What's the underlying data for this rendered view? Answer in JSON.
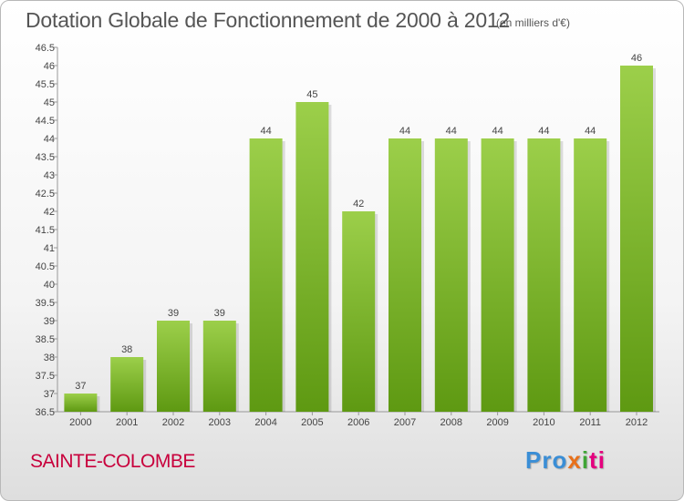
{
  "header": {
    "title": "Dotation Globale de Fonctionnement de 2000 à 2012",
    "subtitle": "(en milliers d'€)"
  },
  "footer": {
    "place": "SAINTE-COLOMBE",
    "logo": [
      "Pro",
      "x",
      "i",
      "ti"
    ]
  },
  "colors": {
    "bar_top": "#9ccf4a",
    "bar_bottom": "#5e9912",
    "title": "#555555",
    "place": "#c8003c"
  },
  "chart_data": {
    "type": "bar",
    "title": "Dotation Globale de Fonctionnement de 2000 à 2012",
    "subtitle": "(en milliers d'€)",
    "categories": [
      "2000",
      "2001",
      "2002",
      "2003",
      "2004",
      "2005",
      "2006",
      "2007",
      "2008",
      "2009",
      "2010",
      "2011",
      "2012"
    ],
    "values": [
      37,
      38,
      39,
      39,
      44,
      45,
      42,
      44,
      44,
      44,
      44,
      44,
      46
    ],
    "data_labels": [
      "37",
      "38",
      "39",
      "39",
      "44",
      "45",
      "42",
      "44",
      "44",
      "44",
      "44",
      "44",
      "46"
    ],
    "ylim": [
      36.5,
      46.5
    ],
    "yticks": [
      "36.5",
      "37",
      "37.5",
      "38",
      "38.5",
      "39",
      "39.5",
      "40",
      "40.5",
      "41",
      "41.5",
      "42",
      "42.5",
      "43",
      "43.5",
      "44",
      "44.5",
      "45",
      "45.5",
      "46",
      "46.5"
    ],
    "grid": false,
    "legend": "none"
  }
}
